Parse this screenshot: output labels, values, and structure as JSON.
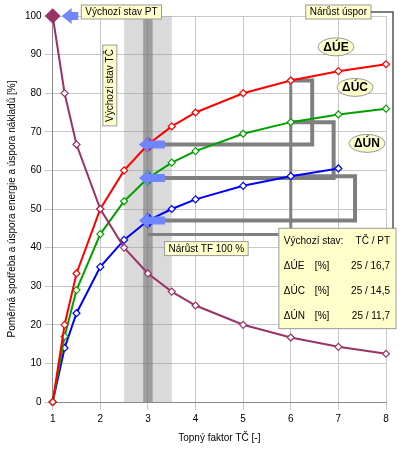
{
  "chart_data": {
    "type": "line",
    "x_label": "Topný faktor TČ [-]",
    "y_label": "Poměrná spotřeba a úspora energie a úspora nákladů [%]",
    "x": [
      1,
      1.25,
      1.5,
      2,
      2.5,
      3,
      3.5,
      4,
      5,
      6,
      7,
      8
    ],
    "series": [
      {
        "color": "#993366",
        "highlight_x": 1,
        "values": [
          100,
          80,
          66.7,
          50,
          40,
          33.3,
          28.6,
          25,
          20,
          16.7,
          14.3,
          12.5
        ]
      },
      {
        "name": "ΔÚE",
        "color": "#ff0000",
        "highlight_x": 3,
        "values": [
          0,
          20,
          33.3,
          50,
          60,
          66.7,
          71.4,
          75,
          80,
          83.3,
          85.7,
          87.5
        ]
      },
      {
        "name": "ΔÚC",
        "color": "#00a000",
        "highlight_x": 3,
        "values": [
          0,
          17,
          29,
          43.5,
          52,
          58,
          62,
          65,
          69.5,
          72.5,
          74.5,
          76
        ]
      },
      {
        "name": "ΔÚN",
        "color": "#0000ff",
        "highlight_x": 3,
        "values": [
          0,
          14,
          23,
          35,
          42,
          47,
          50,
          52.5,
          56,
          58.5,
          60.5,
          null
        ]
      }
    ],
    "target_x": 6,
    "bands": [
      [
        2.5,
        3.5
      ],
      [
        2.9,
        3.1
      ]
    ],
    "xlim": [
      1,
      8
    ],
    "xticks": [
      1,
      2,
      3,
      4,
      5,
      6,
      7,
      8
    ],
    "ylim": [
      0,
      100
    ],
    "yticks": [
      0,
      10,
      20,
      30,
      40,
      50,
      60,
      70,
      80,
      90,
      100
    ],
    "grid": true,
    "marker": "diamond",
    "line_style": "solid",
    "annotations": {
      "start_pt": "Výchozí stav PT",
      "start_tc": "Výchozí stav TČ",
      "savings_increase": "Nárůst úspor",
      "tf_increase": "Nárůst TF 100 %"
    },
    "summary_box": {
      "title": "Výchozí stav:",
      "header": "TČ / PT",
      "rows": [
        [
          "ΔÚE",
          "[%]",
          "25 / 16,7"
        ],
        [
          "ΔÚC",
          "[%]",
          "25 / 14,5"
        ],
        [
          "ΔÚN",
          "[%]",
          "25 / 11,7"
        ]
      ]
    }
  }
}
